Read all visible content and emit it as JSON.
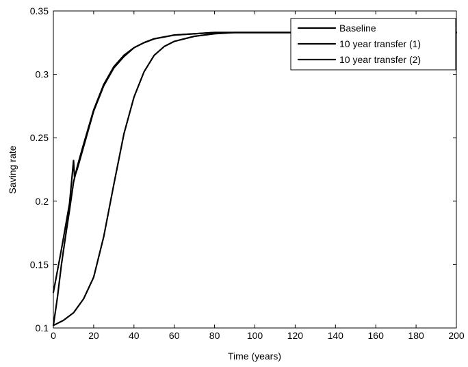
{
  "chart_data": {
    "type": "line",
    "title": "",
    "xlabel": "Time (years)",
    "ylabel": "Saving rate",
    "xlim": [
      0,
      200
    ],
    "ylim": [
      0.1,
      0.35
    ],
    "xticks": [
      0,
      20,
      40,
      60,
      80,
      100,
      120,
      140,
      160,
      180,
      200
    ],
    "yticks": [
      0.1,
      0.15,
      0.2,
      0.25,
      0.3,
      0.35
    ],
    "xtick_labels": [
      "0",
      "20",
      "40",
      "60",
      "80",
      "100",
      "120",
      "140",
      "160",
      "180",
      "200"
    ],
    "ytick_labels": [
      "0.1",
      "0.15",
      "0.2",
      "0.25",
      "0.3",
      "0.35"
    ],
    "grid": false,
    "legend_position": "top-right",
    "line_color": "#000000",
    "series": [
      {
        "name": "Baseline",
        "x": [
          0,
          5,
          10,
          15,
          20,
          25,
          30,
          35,
          40,
          45,
          50,
          55,
          60,
          70,
          80,
          90,
          100,
          120,
          140,
          160,
          180,
          200
        ],
        "y": [
          0.102,
          0.106,
          0.112,
          0.123,
          0.14,
          0.172,
          0.213,
          0.253,
          0.282,
          0.302,
          0.315,
          0.322,
          0.326,
          0.33,
          0.332,
          0.333,
          0.333,
          0.333,
          0.333,
          0.333,
          0.333,
          0.333
        ]
      },
      {
        "name": "10 year transfer (1)",
        "x": [
          0,
          2,
          4,
          6,
          8,
          10,
          10.5,
          12,
          15,
          20,
          25,
          30,
          35,
          40,
          45,
          50,
          60,
          70,
          80,
          100,
          120,
          150,
          200
        ],
        "y": [
          0.128,
          0.145,
          0.162,
          0.18,
          0.198,
          0.232,
          0.219,
          0.226,
          0.243,
          0.271,
          0.291,
          0.305,
          0.314,
          0.321,
          0.325,
          0.328,
          0.331,
          0.332,
          0.333,
          0.333,
          0.333,
          0.333,
          0.333
        ]
      },
      {
        "name": "10 year transfer (2)",
        "x": [
          0,
          2,
          4,
          6,
          8,
          10,
          12,
          15,
          20,
          25,
          30,
          35,
          40,
          45,
          50,
          60,
          70,
          80,
          100,
          120,
          150,
          200
        ],
        "y": [
          0.102,
          0.124,
          0.15,
          0.172,
          0.193,
          0.215,
          0.228,
          0.245,
          0.272,
          0.292,
          0.306,
          0.315,
          0.321,
          0.325,
          0.328,
          0.331,
          0.332,
          0.333,
          0.333,
          0.333,
          0.333,
          0.333
        ]
      }
    ]
  }
}
